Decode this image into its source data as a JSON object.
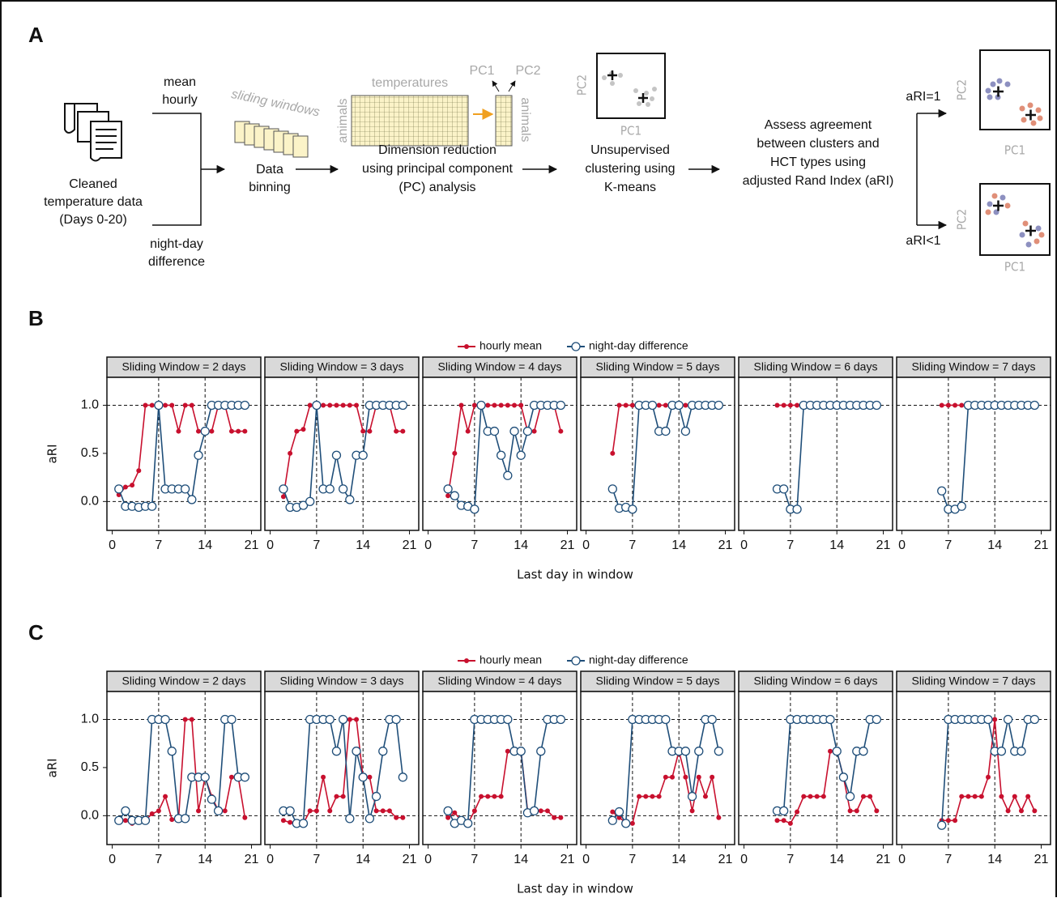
{
  "diagram": {
    "label": "A",
    "input_lines": [
      "Cleaned",
      "temperature data",
      "(Days 0-20)"
    ],
    "mean_hourly": [
      "mean",
      "hourly"
    ],
    "night_day": [
      "night-day",
      "difference"
    ],
    "sliding_windows": "sliding windows",
    "binning": [
      "Data",
      "binning"
    ],
    "temperatures": "temperatures",
    "animals_1": "animals",
    "pc1": "PC1",
    "pc2": "PC2",
    "animals_2": "animals",
    "pca": [
      "Dimension reduction",
      "using principal component",
      "(PC) analysis"
    ],
    "cluster_x": "PC1",
    "cluster_y": "PC2",
    "kmeans": [
      "Unsupervised",
      "clustering using",
      "K-means"
    ],
    "assess": [
      "Assess agreement",
      "between clusters and",
      "HCT types using",
      "adjusted Rand Index (aRI)"
    ],
    "ari_1": "aRI=1",
    "ari_lt1": "aRI<1",
    "result_1_x": "PC1",
    "result_1_y": "PC2",
    "result_2_x": "PC1",
    "result_2_y": "PC2"
  },
  "chart_data": [
    {
      "type": "line",
      "panel": "B",
      "xlabel": "Last day in window",
      "ylabel": "aRI",
      "xlim": [
        -0.8,
        22.4
      ],
      "ylim": [
        -0.3,
        1.29
      ],
      "xticks": [
        0,
        7,
        14,
        21
      ],
      "yticks": [
        {
          "value": 0,
          "label": "0.0"
        },
        {
          "value": 0.5,
          "label": "0.5"
        },
        {
          "value": 1,
          "label": "1.0"
        }
      ],
      "hlines": [
        0,
        1
      ],
      "vlines": [
        7,
        14
      ],
      "series": [
        {
          "name": "hourly mean",
          "color": "#c8102e"
        },
        {
          "name": "night-day difference",
          "color": "#1f4e79"
        }
      ],
      "facets": [
        {
          "title": "Sliding Window = 2 days",
          "x": [
            1,
            2,
            3,
            4,
            5,
            6,
            7,
            8,
            9,
            10,
            11,
            12,
            13,
            14,
            15,
            16,
            17,
            18,
            19,
            20
          ],
          "values": [
            [
              0.07,
              0.15,
              0.17,
              0.32,
              1,
              1,
              1,
              1,
              1,
              0.73,
              1,
              1,
              0.73,
              0.73,
              0.73,
              1,
              1,
              0.73,
              0.73,
              0.73
            ],
            [
              0.13,
              -0.05,
              -0.05,
              -0.06,
              -0.05,
              -0.05,
              1,
              0.13,
              0.13,
              0.13,
              0.13,
              0.02,
              0.48,
              0.73,
              1,
              1,
              1,
              1,
              1,
              1
            ]
          ]
        },
        {
          "title": "Sliding Window = 3 days",
          "x": [
            2,
            3,
            4,
            5,
            6,
            7,
            8,
            9,
            10,
            11,
            12,
            13,
            14,
            15,
            16,
            17,
            18,
            19,
            20
          ],
          "values": [
            [
              0.05,
              0.5,
              0.73,
              0.75,
              1,
              1,
              1,
              1,
              1,
              1,
              1,
              1,
              0.73,
              0.73,
              1,
              1,
              1,
              0.73,
              0.73
            ],
            [
              0.13,
              -0.06,
              -0.06,
              -0.04,
              0,
              1,
              0.13,
              0.13,
              0.48,
              0.13,
              0.02,
              0.48,
              0.48,
              1,
              1,
              1,
              1,
              1,
              1
            ]
          ]
        },
        {
          "title": "Sliding Window = 4 days",
          "x": [
            3,
            4,
            5,
            6,
            7,
            8,
            9,
            10,
            11,
            12,
            13,
            14,
            15,
            16,
            17,
            18,
            19,
            20
          ],
          "values": [
            [
              0.06,
              0.5,
              1,
              0.73,
              1,
              1,
              1,
              1,
              1,
              1,
              1,
              1,
              0.73,
              0.73,
              1,
              1,
              1,
              0.73
            ],
            [
              0.13,
              0.06,
              -0.04,
              -0.05,
              -0.08,
              1,
              0.73,
              0.73,
              0.48,
              0.27,
              0.73,
              0.48,
              0.73,
              1,
              1,
              1,
              1,
              1
            ]
          ]
        },
        {
          "title": "Sliding Window = 5 days",
          "x": [
            4,
            5,
            6,
            7,
            8,
            9,
            10,
            11,
            12,
            13,
            14,
            15,
            16,
            17,
            18,
            19,
            20
          ],
          "values": [
            [
              0.5,
              1,
              1,
              1,
              1,
              1,
              1,
              1,
              1,
              1,
              1,
              1,
              1,
              1,
              1,
              1,
              1
            ],
            [
              0.13,
              -0.07,
              -0.06,
              -0.08,
              1,
              1,
              1,
              0.73,
              0.73,
              1,
              1,
              0.73,
              1,
              1,
              1,
              1,
              1
            ]
          ]
        },
        {
          "title": "Sliding Window = 6 days",
          "x": [
            5,
            6,
            7,
            8,
            9,
            10,
            11,
            12,
            13,
            14,
            15,
            16,
            17,
            18,
            19,
            20
          ],
          "values": [
            [
              1,
              1,
              1,
              1,
              1,
              1,
              1,
              1,
              1,
              1,
              1,
              1,
              1,
              1,
              1,
              1
            ],
            [
              0.13,
              0.13,
              -0.08,
              -0.08,
              1,
              1,
              1,
              1,
              1,
              1,
              1,
              1,
              1,
              1,
              1,
              1
            ]
          ]
        },
        {
          "title": "Sliding Window = 7 days",
          "x": [
            6,
            7,
            8,
            9,
            10,
            11,
            12,
            13,
            14,
            15,
            16,
            17,
            18,
            19,
            20
          ],
          "values": [
            [
              1,
              1,
              1,
              1,
              1,
              1,
              1,
              1,
              1,
              1,
              1,
              1,
              1,
              1,
              1
            ],
            [
              0.11,
              -0.08,
              -0.08,
              -0.05,
              1,
              1,
              1,
              1,
              1,
              1,
              1,
              1,
              1,
              1,
              1
            ]
          ]
        }
      ]
    },
    {
      "type": "line",
      "panel": "C",
      "xlabel": "Last day in window",
      "ylabel": "aRI",
      "xlim": [
        -0.8,
        22.4
      ],
      "ylim": [
        -0.3,
        1.29
      ],
      "xticks": [
        0,
        7,
        14,
        21
      ],
      "yticks": [
        {
          "value": 0,
          "label": "0.0"
        },
        {
          "value": 0.5,
          "label": "0.5"
        },
        {
          "value": 1,
          "label": "1.0"
        }
      ],
      "hlines": [
        0,
        1
      ],
      "vlines": [
        7,
        14
      ],
      "series": [
        {
          "name": "hourly mean",
          "color": "#c8102e"
        },
        {
          "name": "night-day difference",
          "color": "#1f4e79"
        }
      ],
      "facets": [
        {
          "title": "Sliding Window = 2 days",
          "x": [
            1,
            2,
            3,
            4,
            5,
            6,
            7,
            8,
            9,
            10,
            11,
            12,
            13,
            14,
            15,
            16,
            17,
            18,
            19,
            20
          ],
          "values": [
            [
              -0.05,
              -0.05,
              -0.08,
              -0.07,
              -0.05,
              0.02,
              0.05,
              0.2,
              -0.04,
              -0.03,
              1,
              1,
              0.05,
              0.4,
              0.2,
              0.05,
              0.05,
              0.4,
              0.4,
              -0.02
            ],
            [
              -0.05,
              0.05,
              -0.05,
              -0.05,
              -0.05,
              1,
              1,
              1,
              0.67,
              -0.03,
              -0.03,
              0.4,
              0.4,
              0.4,
              0.17,
              0.05,
              1,
              1,
              0.4,
              0.4
            ]
          ]
        },
        {
          "title": "Sliding Window = 3 days",
          "x": [
            2,
            3,
            4,
            5,
            6,
            7,
            8,
            9,
            10,
            11,
            12,
            13,
            14,
            15,
            16,
            17,
            18,
            19,
            20
          ],
          "values": [
            [
              -0.05,
              -0.07,
              -0.08,
              -0.08,
              0.05,
              0.05,
              0.4,
              0.05,
              0.2,
              0.2,
              1,
              1,
              0.4,
              0.4,
              0.05,
              0.05,
              0.05,
              -0.02,
              -0.02
            ],
            [
              0.05,
              0.05,
              -0.08,
              -0.08,
              1,
              1,
              1,
              1,
              0.67,
              1,
              -0.03,
              0.67,
              0.4,
              -0.03,
              0.2,
              0.67,
              1,
              1,
              0.4
            ]
          ]
        },
        {
          "title": "Sliding Window = 4 days",
          "x": [
            3,
            4,
            5,
            6,
            7,
            8,
            9,
            10,
            11,
            12,
            13,
            14,
            15,
            16,
            17,
            18,
            19,
            20
          ],
          "values": [
            [
              -0.02,
              0.03,
              -0.05,
              -0.08,
              0.05,
              0.2,
              0.2,
              0.2,
              0.2,
              0.67,
              0.67,
              0.67,
              0.05,
              0.05,
              0.05,
              0.05,
              -0.02,
              -0.02
            ],
            [
              0.05,
              -0.08,
              -0.05,
              -0.08,
              1,
              1,
              1,
              1,
              1,
              1,
              0.67,
              0.67,
              0.03,
              0.05,
              0.67,
              1,
              1,
              1
            ]
          ]
        },
        {
          "title": "Sliding Window = 5 days",
          "x": [
            4,
            5,
            6,
            7,
            8,
            9,
            10,
            11,
            12,
            13,
            14,
            15,
            16,
            17,
            18,
            19,
            20
          ],
          "values": [
            [
              0.04,
              -0.02,
              -0.07,
              -0.08,
              0.2,
              0.2,
              0.2,
              0.2,
              0.4,
              0.4,
              0.67,
              0.4,
              0.05,
              0.4,
              0.2,
              0.4,
              -0.02
            ],
            [
              -0.05,
              0.04,
              -0.08,
              1,
              1,
              1,
              1,
              1,
              1,
              0.67,
              0.67,
              0.67,
              0.2,
              0.67,
              1,
              1,
              0.67
            ]
          ]
        },
        {
          "title": "Sliding Window = 6 days",
          "x": [
            5,
            6,
            7,
            8,
            9,
            10,
            11,
            12,
            13,
            14,
            15,
            16,
            17,
            18,
            19,
            20
          ],
          "values": [
            [
              -0.05,
              -0.05,
              -0.08,
              0.04,
              0.2,
              0.2,
              0.2,
              0.2,
              0.67,
              0.67,
              0.4,
              0.05,
              0.05,
              0.2,
              0.2,
              0.05
            ],
            [
              0.05,
              0.05,
              1,
              1,
              1,
              1,
              1,
              1,
              1,
              0.67,
              0.4,
              0.2,
              0.67,
              0.67,
              1,
              1
            ]
          ]
        },
        {
          "title": "Sliding Window = 7 days",
          "x": [
            6,
            7,
            8,
            9,
            10,
            11,
            12,
            13,
            14,
            15,
            16,
            17,
            18,
            19,
            20
          ],
          "values": [
            [
              -0.05,
              -0.05,
              -0.05,
              0.2,
              0.2,
              0.2,
              0.2,
              0.4,
              1,
              0.2,
              0.05,
              0.2,
              0.05,
              0.2,
              0.05
            ],
            [
              -0.1,
              1,
              1,
              1,
              1,
              1,
              1,
              1,
              0.67,
              0.67,
              1,
              0.67,
              0.67,
              1,
              1
            ]
          ]
        }
      ]
    }
  ]
}
